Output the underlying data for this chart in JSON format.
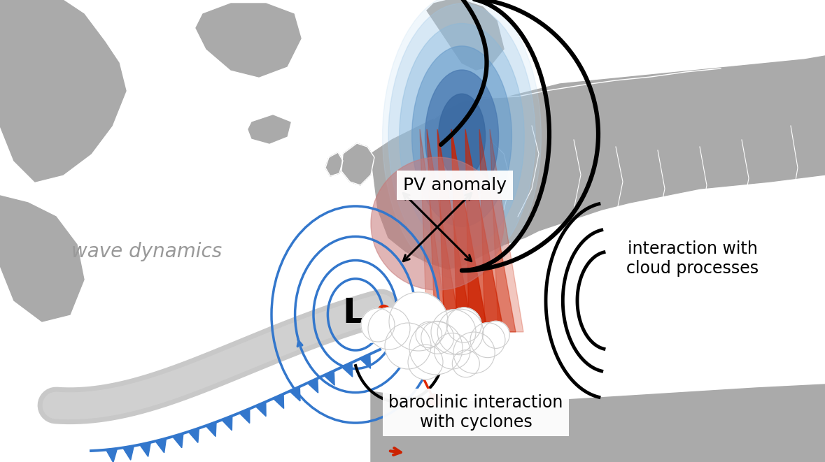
{
  "bg_color": "#ffffff",
  "map_land_color": "#aaaaaa",
  "map_border_color": "#ffffff",
  "pv_label": "PV anomaly",
  "wave_dynamics_label": "wave dynamics",
  "interaction_cloud_label": "interaction with\ncloud processes",
  "baroclinic_label": "baroclinic interaction\nwith cyclones",
  "red_dot_color": "#e02800",
  "arrow_color": "#cc2200",
  "blue_color": "#4488cc",
  "gray_ribbon_color": "#c8c8c8",
  "pv_blue_light": "#b8d8f0",
  "pv_blue_mid": "#7ab0d8",
  "pv_blue_dark": "#4888b8",
  "warm_circle_color": "#c87878"
}
